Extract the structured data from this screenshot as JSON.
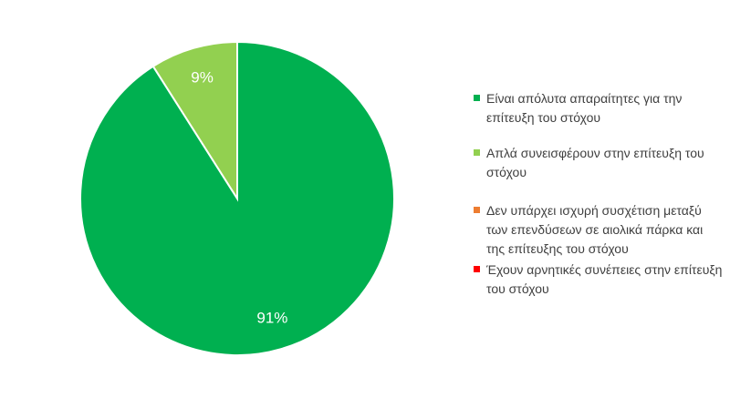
{
  "chart_data": {
    "type": "pie",
    "slices": [
      {
        "label": "Είναι απόλυτα απαραίτητες για την επίτευξη του στόχου",
        "value": 91,
        "display": "91%",
        "color": "#00b050"
      },
      {
        "label": "Απλά συνεισφέρουν στην επίτευξη του στόχου",
        "value": 9,
        "display": "9%",
        "color": "#92d050"
      },
      {
        "label": "Δεν υπάρχει ισχυρή συσχέτιση μεταξύ των επενδύσεων σε αιολικά πάρκα και της επίτευξης του στόχου",
        "value": 0,
        "display": "",
        "color": "#ed7d31"
      },
      {
        "label": "Έχουν αρνητικές συνέπειες στην επίτευξη του στόχου",
        "value": 0,
        "display": "",
        "color": "#ff0000"
      }
    ],
    "start": "12 o'clock",
    "direction": "clockwise",
    "legend_position": "right"
  }
}
